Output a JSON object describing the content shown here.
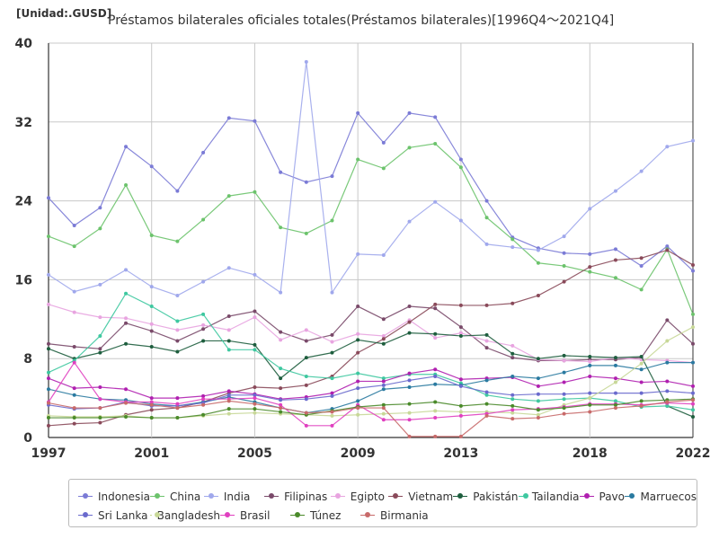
{
  "unit_label": "[Unidad:.GUSD]",
  "chart_data": {
    "type": "line",
    "title": "Préstamos bilaterales oficiales totales(Préstamos bilaterales)[1996Q4～2021Q4]",
    "xlabel": "",
    "ylabel": "[Unidad:.GUSD]",
    "ylim": [
      0,
      40
    ],
    "xlim": [
      1997,
      2022
    ],
    "y_ticks": [
      0,
      8,
      16,
      24,
      32,
      40
    ],
    "x_ticks": [
      1997,
      2001,
      2005,
      2009,
      2013,
      2018,
      2022
    ],
    "legend_position": "bottom",
    "grid": true,
    "x": [
      1997,
      1998,
      1999,
      2000,
      2001,
      2002,
      2003,
      2004,
      2005,
      2006,
      2007,
      2008,
      2009,
      2010,
      2011,
      2012,
      2013,
      2014,
      2015,
      2016,
      2017,
      2018,
      2019,
      2020,
      2021,
      2022
    ],
    "series": [
      {
        "name": "Indonesia",
        "color": "#7b7bd6",
        "values": [
          24.3,
          21.5,
          23.3,
          29.5,
          27.5,
          25.0,
          28.9,
          32.4,
          32.1,
          26.9,
          25.9,
          26.5,
          32.9,
          29.9,
          32.9,
          32.5,
          28.2,
          24.0,
          20.3,
          19.2,
          18.7,
          18.6,
          19.1,
          17.4,
          19.4,
          16.9
        ]
      },
      {
        "name": "China",
        "color": "#6cc36c",
        "values": [
          20.4,
          19.4,
          21.2,
          25.6,
          20.5,
          19.9,
          22.1,
          24.5,
          24.9,
          21.3,
          20.7,
          22.0,
          28.2,
          27.3,
          29.4,
          29.8,
          27.4,
          22.3,
          20.1,
          17.7,
          17.4,
          16.8,
          16.2,
          15.0,
          19.1,
          12.5
        ]
      },
      {
        "name": "India",
        "color": "#a0a8ec",
        "values": [
          16.5,
          14.8,
          15.5,
          17.0,
          15.3,
          14.4,
          15.8,
          17.2,
          16.5,
          14.7,
          38.1,
          14.7,
          18.6,
          18.5,
          21.9,
          23.9,
          22.0,
          19.6,
          19.3,
          19.0,
          20.4,
          23.2,
          25.0,
          27.0,
          29.5,
          30.1
        ]
      },
      {
        "name": "Filipinas",
        "color": "#7a4a6a",
        "values": [
          9.5,
          9.2,
          9.0,
          11.6,
          10.8,
          9.8,
          11.0,
          12.3,
          12.8,
          10.7,
          9.8,
          10.4,
          13.3,
          12.0,
          13.3,
          13.1,
          11.2,
          9.1,
          8.1,
          7.8,
          7.8,
          7.9,
          7.9,
          8.1,
          11.9,
          9.5
        ]
      },
      {
        "name": "Egipto",
        "color": "#e8a4e0",
        "values": [
          13.5,
          12.7,
          12.2,
          12.1,
          11.5,
          10.9,
          11.4,
          10.9,
          12.2,
          9.9,
          10.9,
          9.7,
          10.5,
          10.3,
          11.9,
          10.1,
          10.6,
          9.8,
          9.3,
          7.9,
          7.8,
          7.7,
          8.1,
          7.9,
          7.8,
          7.6
        ]
      },
      {
        "name": "Vietnam",
        "color": "#8a4a5a",
        "values": [
          1.2,
          1.4,
          1.5,
          2.3,
          2.8,
          3.0,
          3.6,
          4.5,
          5.1,
          5.0,
          5.3,
          6.2,
          8.6,
          10.0,
          11.7,
          13.5,
          13.4,
          13.4,
          13.6,
          14.4,
          15.8,
          17.3,
          18.0,
          18.2,
          19.0,
          17.5
        ]
      },
      {
        "name": "Pakistán",
        "color": "#1e5e3e",
        "values": [
          9.0,
          8.0,
          8.6,
          9.5,
          9.2,
          8.7,
          9.8,
          9.8,
          9.4,
          6.0,
          8.1,
          8.6,
          9.9,
          9.5,
          10.6,
          10.5,
          10.3,
          10.4,
          8.5,
          8.0,
          8.3,
          8.2,
          8.1,
          8.2,
          3.2,
          2.1
        ]
      },
      {
        "name": "Tailandia",
        "color": "#3ec8a0",
        "values": [
          6.6,
          7.8,
          10.3,
          14.6,
          13.3,
          11.8,
          12.5,
          8.9,
          8.9,
          7.0,
          6.2,
          6.0,
          6.5,
          6.0,
          6.4,
          6.4,
          5.5,
          4.3,
          3.9,
          3.7,
          3.9,
          4.0,
          3.7,
          3.1,
          3.2,
          2.8
        ]
      },
      {
        "name": "Pavo",
        "color": "#b020b0",
        "values": [
          6.0,
          5.0,
          5.1,
          4.9,
          4.0,
          4.0,
          4.2,
          4.7,
          4.4,
          3.9,
          4.1,
          4.5,
          5.7,
          5.7,
          6.5,
          6.9,
          5.9,
          6.0,
          6.1,
          5.2,
          5.6,
          6.2,
          6.0,
          5.6,
          5.7,
          5.2
        ]
      },
      {
        "name": "Marruecos",
        "color": "#2a7aa0",
        "values": [
          4.9,
          4.3,
          3.9,
          3.8,
          3.4,
          3.2,
          3.6,
          4.1,
          3.6,
          3.0,
          2.5,
          2.9,
          3.7,
          4.9,
          5.1,
          5.4,
          5.3,
          5.8,
          6.2,
          6.0,
          6.6,
          7.3,
          7.3,
          6.9,
          7.6,
          7.6
        ]
      },
      {
        "name": "Sri Lanka",
        "color": "#6a6acd",
        "values": [
          3.3,
          2.9,
          3.0,
          3.6,
          3.2,
          3.2,
          3.5,
          4.3,
          4.3,
          3.8,
          3.9,
          4.2,
          5.0,
          5.3,
          5.8,
          6.2,
          5.2,
          4.6,
          4.3,
          4.4,
          4.4,
          4.5,
          4.5,
          4.5,
          4.7,
          4.5
        ]
      },
      {
        "name": "Bangladesh",
        "color": "#c8d898",
        "values": [
          2.2,
          2.1,
          2.1,
          2.2,
          2.0,
          2.0,
          2.2,
          2.4,
          2.5,
          2.4,
          2.3,
          2.2,
          2.3,
          2.4,
          2.5,
          2.7,
          2.6,
          2.6,
          2.5,
          2.3,
          3.3,
          4.0,
          5.6,
          7.5,
          9.8,
          11.2
        ]
      },
      {
        "name": "Brasil",
        "color": "#e040c0",
        "values": [
          3.6,
          7.6,
          3.9,
          3.6,
          3.6,
          3.4,
          3.9,
          3.9,
          4.0,
          3.3,
          1.2,
          1.2,
          3.3,
          1.8,
          1.8,
          2.0,
          2.2,
          2.4,
          2.8,
          2.9,
          3.1,
          3.4,
          3.4,
          3.3,
          3.5,
          3.4
        ]
      },
      {
        "name": "Túnez",
        "color": "#4a8a2a",
        "values": [
          2.0,
          2.0,
          2.0,
          2.1,
          2.0,
          2.0,
          2.3,
          2.9,
          2.9,
          2.6,
          2.3,
          2.7,
          3.1,
          3.3,
          3.4,
          3.6,
          3.2,
          3.4,
          3.2,
          2.8,
          3.0,
          3.3,
          3.3,
          3.7,
          3.8,
          3.9
        ]
      },
      {
        "name": "Birmania",
        "color": "#c86a6a",
        "values": [
          3.5,
          3.0,
          3.0,
          3.5,
          3.3,
          3.0,
          3.3,
          3.7,
          3.4,
          3.0,
          2.5,
          2.6,
          3.0,
          3.0,
          0.1,
          0.1,
          0.1,
          2.2,
          1.9,
          2.0,
          2.4,
          2.6,
          3.0,
          3.2,
          3.6,
          3.8
        ]
      }
    ]
  }
}
